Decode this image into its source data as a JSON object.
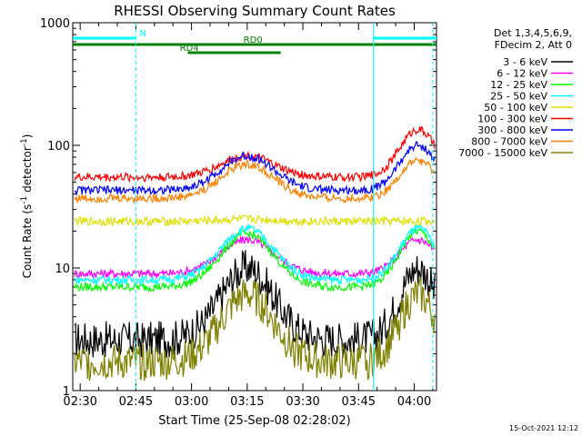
{
  "chart_data": {
    "type": "line",
    "title": "RHESSI Observing Summary Count Rates",
    "xlabel": "Start Time (25-Sep-08 02:28:02)",
    "ylabel_main": "Count Rate (s",
    "ylabel_sup1": "-1",
    "ylabel_mid": " detector",
    "ylabel_sup2": "-1",
    "ylabel_end": ")",
    "yscale": "log",
    "ylim": [
      1,
      1000
    ],
    "xlim_minutes": [
      0,
      98
    ],
    "x_ticks": [
      {
        "label": "02:30",
        "m": 2
      },
      {
        "label": "02:45",
        "m": 17
      },
      {
        "label": "03:00",
        "m": 32
      },
      {
        "label": "03:15",
        "m": 47
      },
      {
        "label": "03:30",
        "m": 62
      },
      {
        "label": "03:45",
        "m": 77
      },
      {
        "label": "04:00",
        "m": 92
      }
    ],
    "y_ticks": [
      {
        "label": "1",
        "v": 1
      },
      {
        "label": "10",
        "v": 10
      },
      {
        "label": "100",
        "v": 100
      },
      {
        "label": "1000",
        "v": 1000
      }
    ],
    "legend_header": [
      "Det 1,3,4,5,6,9,",
      "FDecim 2, Att 0"
    ],
    "series": [
      {
        "name": "3 - 6 keV",
        "color": "#000000",
        "base": 2.6,
        "peak1": 10,
        "peak2": 10
      },
      {
        "name": "6 - 12 keV",
        "color": "#ff00ff",
        "base": 9,
        "peak1": 17,
        "peak2": 17
      },
      {
        "name": "12 - 25 keV",
        "color": "#00ff00",
        "base": 7,
        "peak1": 19,
        "peak2": 20
      },
      {
        "name": "25 - 50 keV",
        "color": "#00ffff",
        "base": 8,
        "peak1": 21,
        "peak2": 21
      },
      {
        "name": "50 - 100 keV",
        "color": "#e0e000",
        "base": 24,
        "peak1": 25,
        "peak2": 24
      },
      {
        "name": "100 - 300 keV",
        "color": "#ff0000",
        "base": 55,
        "peak1": 82,
        "peak2": 135
      },
      {
        "name": "300 - 800 keV",
        "color": "#0000ff",
        "base": 43,
        "peak1": 82,
        "peak2": 100
      },
      {
        "name": "800 - 7000 keV",
        "color": "#ff8000",
        "base": 37,
        "peak1": 70,
        "peak2": 75
      },
      {
        "name": "7000 - 15000 keV",
        "color": "#808000",
        "base": 1.7,
        "peak1": 6,
        "peak2": 6
      }
    ],
    "state_bars": [
      {
        "label": "N",
        "color": "#00ffff",
        "segments": [
          [
            0,
            17
          ],
          [
            81,
            98
          ]
        ]
      },
      {
        "label": "RD0",
        "color": "#008000",
        "segments": [
          [
            0,
            56
          ],
          [
            56,
            98
          ]
        ]
      },
      {
        "label": "RD4",
        "color": "#008000",
        "segments": [
          [
            31,
            56
          ]
        ]
      }
    ],
    "vertical_markers": [
      {
        "m": 17,
        "color": "#00ffff",
        "style": "dashed"
      },
      {
        "m": 81,
        "color": "#00ffff",
        "style": "solid"
      },
      {
        "m": 97,
        "color": "#00ffff",
        "style": "dashed"
      }
    ],
    "footer_date": "15-Oct-2021 12:12"
  }
}
